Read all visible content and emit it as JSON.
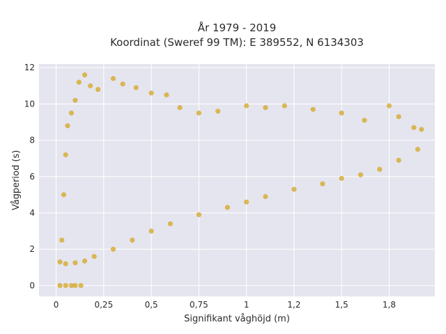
{
  "chart_data": {
    "type": "scatter",
    "title_line1": "År 1979 - 2019",
    "title_line2": "Koordinat (Sweref 99 TM): E 389552, N 6134303",
    "xlabel": "Signifikant våghöjd (m)",
    "ylabel": "Vågperiod (s)",
    "xlim": [
      -0.09,
      1.99
    ],
    "ylim": [
      -0.6,
      12.2
    ],
    "x_ticks": [
      0,
      0.25,
      0.5,
      0.75,
      1,
      1.25,
      1.5,
      1.75
    ],
    "x_tick_labels": [
      "0",
      "0,25",
      "0,5",
      "0,75",
      "1",
      "1,2",
      "1,5",
      "1,8"
    ],
    "y_ticks": [
      0,
      2,
      4,
      6,
      8,
      10,
      12
    ],
    "y_tick_labels": [
      "0",
      "2",
      "4",
      "6",
      "8",
      "10",
      "12"
    ],
    "grid": true,
    "colors": {
      "marker": "#d4a520",
      "plot_background": "#e5e5ef",
      "grid": "#ffffff"
    },
    "points": [
      [
        0.02,
        1.3
      ],
      [
        0.03,
        2.5
      ],
      [
        0.04,
        5.0
      ],
      [
        0.05,
        7.2
      ],
      [
        0.06,
        8.8
      ],
      [
        0.08,
        9.5
      ],
      [
        0.1,
        10.2
      ],
      [
        0.12,
        11.2
      ],
      [
        0.15,
        11.6
      ],
      [
        0.18,
        11.0
      ],
      [
        0.22,
        10.8
      ],
      [
        0.3,
        11.4
      ],
      [
        0.35,
        11.1
      ],
      [
        0.42,
        10.9
      ],
      [
        0.5,
        10.6
      ],
      [
        0.58,
        10.5
      ],
      [
        0.65,
        9.8
      ],
      [
        0.75,
        9.5
      ],
      [
        0.85,
        9.6
      ],
      [
        1.0,
        9.9
      ],
      [
        1.1,
        9.8
      ],
      [
        1.2,
        9.9
      ],
      [
        1.35,
        9.7
      ],
      [
        1.5,
        9.5
      ],
      [
        1.62,
        9.1
      ],
      [
        1.75,
        9.9
      ],
      [
        1.8,
        9.3
      ],
      [
        1.88,
        8.7
      ],
      [
        1.92,
        8.6
      ],
      [
        0.05,
        1.2
      ],
      [
        0.1,
        1.25
      ],
      [
        0.15,
        1.35
      ],
      [
        0.2,
        1.6
      ],
      [
        0.3,
        2.0
      ],
      [
        0.4,
        2.5
      ],
      [
        0.5,
        3.0
      ],
      [
        0.6,
        3.4
      ],
      [
        0.75,
        3.9
      ],
      [
        0.9,
        4.3
      ],
      [
        1.0,
        4.6
      ],
      [
        1.1,
        4.9
      ],
      [
        1.25,
        5.3
      ],
      [
        1.4,
        5.6
      ],
      [
        1.5,
        5.9
      ],
      [
        1.6,
        6.1
      ],
      [
        1.7,
        6.4
      ],
      [
        1.8,
        6.9
      ],
      [
        1.9,
        7.5
      ],
      [
        0.02,
        0.0
      ],
      [
        0.05,
        0.0
      ],
      [
        0.08,
        0.0
      ],
      [
        0.1,
        0.0
      ],
      [
        0.13,
        0.0
      ]
    ]
  }
}
